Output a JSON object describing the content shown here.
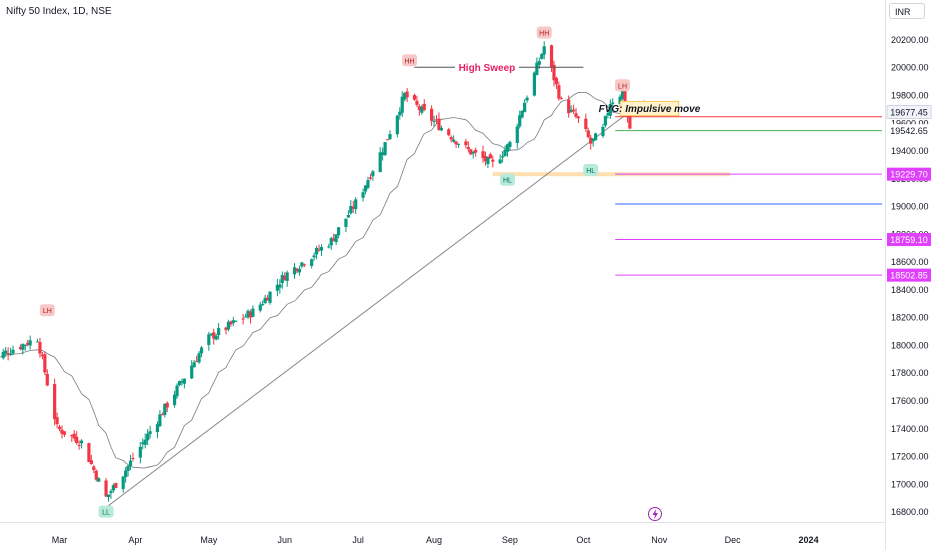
{
  "header": {
    "title": "Nifty 50 Index, 1D, NSE",
    "currency": "INR"
  },
  "colors": {
    "up": "#089981",
    "down": "#f23645",
    "sma": "#787b86",
    "trendline": "#888888",
    "fvg_fill": "#fff2cc",
    "fvg_border": "#f7a600",
    "red_line": "#f23645",
    "green_line": "#4caf50",
    "orange_line": "#ffb74d",
    "magenta": "#e040fb",
    "blue_line": "#2962ff",
    "hh_badge": "#f8c7c7",
    "ll_badge": "#b7ebd9"
  },
  "chart_data": {
    "type": "candlestick",
    "x_axis": {
      "labels": [
        "Mar",
        "Apr",
        "May",
        "Jun",
        "Jul",
        "Aug",
        "Sep",
        "Oct",
        "Nov",
        "Dec",
        "2024"
      ],
      "label_dates": [
        "2023-03-01",
        "2023-04-01",
        "2023-05-01",
        "2023-06-01",
        "2023-07-01",
        "2023-08-01",
        "2023-09-01",
        "2023-10-01",
        "2023-11-01",
        "2023-12-01",
        "2024-01-01"
      ],
      "range": [
        "2023-02-01",
        "2024-01-31"
      ]
    },
    "y_axis": {
      "ticks": [
        16800,
        17000,
        17200,
        17400,
        17600,
        17800,
        18000,
        18200,
        18400,
        18600,
        18800,
        19000,
        19200,
        19400,
        19600,
        19800,
        20000,
        20200
      ],
      "tick_labels": [
        "16800.00",
        "17000.00",
        "17200.00",
        "17400.00",
        "17600.00",
        "17800.00",
        "18000.00",
        "18200.00",
        "18400.00",
        "18600.00",
        "18800.00",
        "19000.00",
        "19200.00",
        "19400.00",
        "19600.00",
        "19800.00",
        "20000.00",
        "20200.00"
      ],
      "range": [
        16700,
        20300
      ]
    },
    "price_labels": [
      {
        "text": "19677.45",
        "value": 19677.45,
        "style": "last"
      },
      {
        "text": "19542.65",
        "value": 19542.65,
        "style": "green"
      },
      {
        "text": "19229.70",
        "value": 19229.7,
        "style": "magenta"
      },
      {
        "text": "18759.10",
        "value": 18759.1,
        "style": "magenta"
      },
      {
        "text": "18502.85",
        "value": 18502.85,
        "style": "magenta"
      }
    ],
    "key_points": [
      {
        "date": "2023-02-01",
        "price": 17900
      },
      {
        "date": "2023-02-20",
        "price": 18050
      },
      {
        "date": "2023-02-28",
        "price": 17400
      },
      {
        "date": "2023-03-10",
        "price": 17300
      },
      {
        "date": "2023-03-20",
        "price": 16900
      },
      {
        "date": "2023-03-28",
        "price": 17100
      },
      {
        "date": "2023-04-15",
        "price": 17600
      },
      {
        "date": "2023-05-01",
        "price": 18050
      },
      {
        "date": "2023-05-20",
        "price": 18250
      },
      {
        "date": "2023-06-01",
        "price": 18500
      },
      {
        "date": "2023-06-20",
        "price": 18750
      },
      {
        "date": "2023-07-01",
        "price": 19050
      },
      {
        "date": "2023-07-12",
        "price": 19450
      },
      {
        "date": "2023-07-20",
        "price": 19800
      },
      {
        "date": "2023-07-26",
        "price": 19700
      },
      {
        "date": "2023-08-05",
        "price": 19550
      },
      {
        "date": "2023-08-15",
        "price": 19400
      },
      {
        "date": "2023-08-25",
        "price": 19300
      },
      {
        "date": "2023-09-01",
        "price": 19450
      },
      {
        "date": "2023-09-08",
        "price": 19800
      },
      {
        "date": "2023-09-15",
        "price": 20150
      },
      {
        "date": "2023-09-22",
        "price": 19750
      },
      {
        "date": "2023-09-30",
        "price": 19600
      },
      {
        "date": "2023-10-04",
        "price": 19450
      },
      {
        "date": "2023-10-09",
        "price": 19550
      },
      {
        "date": "2023-10-12",
        "price": 19750
      },
      {
        "date": "2023-10-17",
        "price": 19820
      },
      {
        "date": "2023-10-20",
        "price": 19560
      },
      {
        "date": "2023-10-21",
        "price": 19543
      }
    ],
    "horizontal_lines": [
      {
        "from": "2023-07-24",
        "to": "2023-10-01",
        "price": 20000,
        "color": "#555555",
        "label": "High Sweep"
      },
      {
        "from": "2023-10-14",
        "to": "2024-01-31",
        "price": 19643,
        "color": "#f23645"
      },
      {
        "from": "2023-10-14",
        "to": "2024-01-31",
        "price": 19543,
        "color": "#4caf50"
      },
      {
        "from": "2023-08-25",
        "to": "2023-11-30",
        "price": 19229.7,
        "color": "#ffb74d",
        "band": true
      },
      {
        "from": "2023-10-14",
        "to": "2024-01-31",
        "price": 19229.7,
        "color": "#e040fb"
      },
      {
        "from": "2023-10-14",
        "to": "2024-01-31",
        "price": 19015,
        "color": "#2962ff"
      },
      {
        "from": "2023-10-14",
        "to": "2024-01-31",
        "price": 18759.1,
        "color": "#e040fb"
      },
      {
        "from": "2023-10-14",
        "to": "2024-01-31",
        "price": 18502.85,
        "color": "#e040fb"
      }
    ],
    "trendline": {
      "from": {
        "date": "2023-03-20",
        "price": 16830
      },
      "to": {
        "date": "2023-10-26",
        "price": 19760
      }
    },
    "fvg_box": {
      "label": "FVG: Impulsive move",
      "from": "2023-10-16",
      "to": "2023-11-09",
      "price_low": 19650,
      "price_high": 19755
    },
    "labels": [
      {
        "text": "LH",
        "date": "2023-02-24",
        "price": 18250,
        "kind": "high"
      },
      {
        "text": "LL",
        "date": "2023-03-20",
        "price": 16800,
        "kind": "low"
      },
      {
        "text": "HH",
        "date": "2023-07-22",
        "price": 20050,
        "kind": "high"
      },
      {
        "text": "HL",
        "date": "2023-08-31",
        "price": 19190,
        "kind": "low"
      },
      {
        "text": "HH",
        "date": "2023-09-15",
        "price": 20250,
        "kind": "high"
      },
      {
        "text": "HL",
        "date": "2023-10-04",
        "price": 19260,
        "kind": "low"
      },
      {
        "text": "LH",
        "date": "2023-10-17",
        "price": 19870,
        "kind": "high"
      }
    ],
    "legend": null,
    "grid": false
  },
  "footer": {
    "event_icon": "lightning-icon"
  }
}
